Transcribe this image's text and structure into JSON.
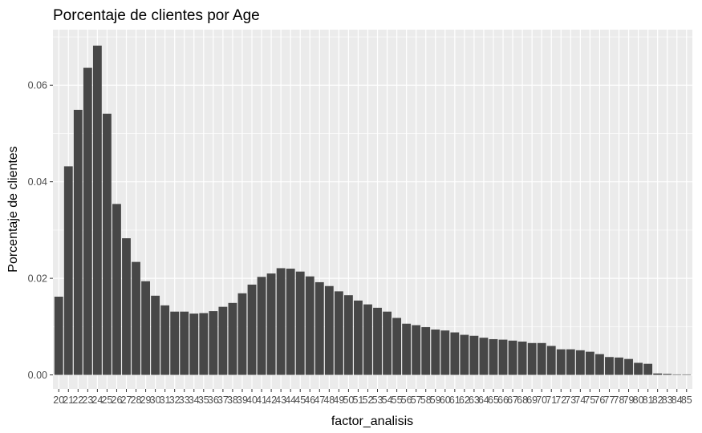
{
  "chart_data": {
    "type": "bar",
    "title": "Porcentaje de clientes por Age",
    "xlabel": "factor_analisis",
    "ylabel": "Porcentaje de clientes",
    "ylim": [
      -0.0029,
      0.0715
    ],
    "yticks": [
      0.0,
      0.02,
      0.04,
      0.06
    ],
    "ytick_labels": [
      "0.00",
      "0.02",
      "0.04",
      "0.06"
    ],
    "grid": true,
    "categories": [
      "20",
      "21",
      "22",
      "23",
      "24",
      "25",
      "26",
      "27",
      "28",
      "29",
      "30",
      "31",
      "32",
      "33",
      "34",
      "35",
      "36",
      "37",
      "38",
      "39",
      "40",
      "41",
      "42",
      "43",
      "44",
      "45",
      "46",
      "47",
      "48",
      "49",
      "50",
      "51",
      "52",
      "53",
      "54",
      "55",
      "56",
      "57",
      "58",
      "59",
      "60",
      "61",
      "62",
      "63",
      "64",
      "65",
      "66",
      "67",
      "68",
      "69",
      "70",
      "71",
      "72",
      "73",
      "74",
      "75",
      "76",
      "77",
      "78",
      "79",
      "80",
      "81",
      "82",
      "83",
      "84",
      "85"
    ],
    "values": [
      0.0162,
      0.0432,
      0.0549,
      0.0636,
      0.0682,
      0.0541,
      0.0354,
      0.0283,
      0.0234,
      0.0194,
      0.0164,
      0.0144,
      0.0131,
      0.0131,
      0.0127,
      0.0128,
      0.0132,
      0.0141,
      0.0149,
      0.0169,
      0.0187,
      0.0203,
      0.021,
      0.0221,
      0.022,
      0.0214,
      0.0204,
      0.0192,
      0.0184,
      0.0173,
      0.0165,
      0.0154,
      0.0146,
      0.0139,
      0.0131,
      0.0118,
      0.0106,
      0.0103,
      0.0099,
      0.0094,
      0.0092,
      0.0088,
      0.0083,
      0.0081,
      0.0077,
      0.0074,
      0.0073,
      0.0071,
      0.0069,
      0.0066,
      0.0066,
      0.006,
      0.0053,
      0.0053,
      0.0051,
      0.0048,
      0.0043,
      0.0037,
      0.0036,
      0.0033,
      0.0025,
      0.0023,
      0.0003,
      0.0002,
      0.0001,
      0.0001
    ],
    "colors": {
      "bar": "#474747",
      "panel": "#ebebeb",
      "grid": "#ffffff"
    }
  }
}
